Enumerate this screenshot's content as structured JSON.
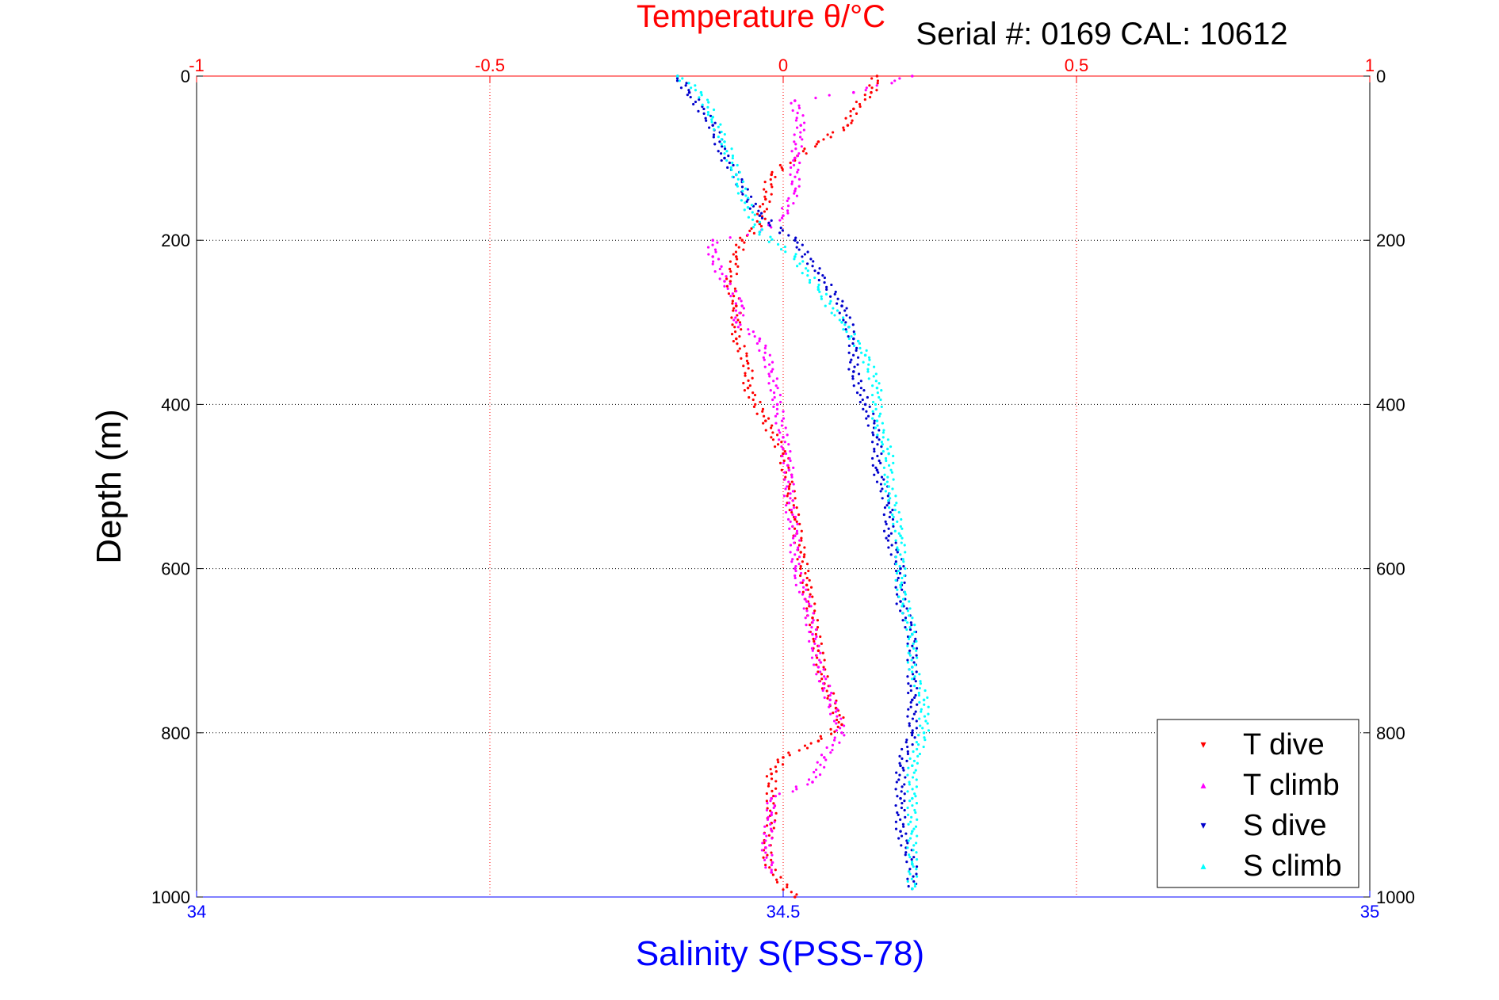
{
  "chart_data": {
    "type": "scatter",
    "top_title": "Temperature θ/°C",
    "serial_label": "Serial #: 0169 CAL: 10612",
    "ylabel": "Depth (m)",
    "xlabel_bottom": "Salinity S(PSS-78)",
    "temp_axis": {
      "range": [
        -1,
        1
      ],
      "ticks": [
        -1,
        -0.5,
        0,
        0.5,
        1
      ],
      "tick_labels": [
        "-1",
        "-0.5",
        "0",
        "0.5",
        "1"
      ]
    },
    "sal_axis": {
      "range": [
        34,
        35
      ],
      "ticks": [
        34,
        34.5,
        35
      ],
      "tick_labels": [
        "34",
        "34.5",
        "35"
      ]
    },
    "depth_axis": {
      "range": [
        0,
        1000
      ],
      "ticks": [
        0,
        200,
        400,
        600,
        800,
        1000
      ],
      "tick_labels": [
        "0",
        "200",
        "400",
        "600",
        "800",
        "1000"
      ],
      "reversed": true
    },
    "grid": true,
    "legend_position": "bottom-right",
    "colors": {
      "temp_axis": "#ff0000",
      "sal_axis": "#0000ff",
      "T dive": "#ff0000",
      "T climb": "#ff00ff",
      "S dive": "#0000cc",
      "S climb": "#00ffff"
    },
    "series": [
      {
        "name": "T dive",
        "axis": "temp",
        "points": [
          [
            0.16,
            0
          ],
          [
            0.15,
            20
          ],
          [
            0.12,
            40
          ],
          [
            0.11,
            60
          ],
          [
            0.06,
            80
          ],
          [
            0.02,
            100
          ],
          [
            -0.02,
            120
          ],
          [
            -0.03,
            150
          ],
          [
            -0.04,
            180
          ],
          [
            -0.07,
            200
          ],
          [
            -0.08,
            220
          ],
          [
            -0.09,
            250
          ],
          [
            -0.08,
            280
          ],
          [
            -0.08,
            320
          ],
          [
            -0.06,
            350
          ],
          [
            -0.06,
            380
          ],
          [
            -0.03,
            420
          ],
          [
            0.0,
            460
          ],
          [
            0.01,
            500
          ],
          [
            0.02,
            540
          ],
          [
            0.03,
            580
          ],
          [
            0.04,
            620
          ],
          [
            0.05,
            660
          ],
          [
            0.06,
            700
          ],
          [
            0.07,
            740
          ],
          [
            0.09,
            770
          ],
          [
            0.1,
            790
          ],
          [
            0.06,
            810
          ],
          [
            0.0,
            830
          ],
          [
            -0.02,
            850
          ],
          [
            -0.02,
            880
          ],
          [
            -0.02,
            910
          ],
          [
            -0.03,
            940
          ],
          [
            -0.02,
            970
          ],
          [
            0.02,
            1000
          ]
        ]
      },
      {
        "name": "T climb",
        "axis": "temp",
        "points": [
          [
            0.22,
            0
          ],
          [
            0.12,
            20
          ],
          [
            0.02,
            30
          ],
          [
            0.03,
            60
          ],
          [
            0.02,
            100
          ],
          [
            0.02,
            140
          ],
          [
            0.0,
            170
          ],
          [
            -0.04,
            190
          ],
          [
            -0.12,
            200
          ],
          [
            -0.12,
            220
          ],
          [
            -0.1,
            250
          ],
          [
            -0.07,
            280
          ],
          [
            -0.08,
            300
          ],
          [
            -0.04,
            320
          ],
          [
            -0.02,
            360
          ],
          [
            -0.01,
            400
          ],
          [
            0.0,
            440
          ],
          [
            0.01,
            480
          ],
          [
            0.01,
            520
          ],
          [
            0.02,
            560
          ],
          [
            0.02,
            600
          ],
          [
            0.04,
            640
          ],
          [
            0.05,
            680
          ],
          [
            0.06,
            720
          ],
          [
            0.08,
            760
          ],
          [
            0.1,
            800
          ],
          [
            0.07,
            830
          ],
          [
            0.05,
            860
          ],
          [
            -0.02,
            880
          ],
          [
            -0.02,
            900
          ],
          [
            -0.03,
            940
          ],
          [
            -0.02,
            970
          ]
        ]
      },
      {
        "name": "S dive",
        "axis": "sal",
        "points": [
          [
            34.41,
            0
          ],
          [
            34.42,
            20
          ],
          [
            34.44,
            60
          ],
          [
            34.45,
            100
          ],
          [
            34.46,
            120
          ],
          [
            34.47,
            150
          ],
          [
            34.48,
            170
          ],
          [
            34.51,
            200
          ],
          [
            34.53,
            240
          ],
          [
            34.55,
            280
          ],
          [
            34.56,
            320
          ],
          [
            34.56,
            360
          ],
          [
            34.57,
            400
          ],
          [
            34.58,
            440
          ],
          [
            34.58,
            480
          ],
          [
            34.59,
            520
          ],
          [
            34.59,
            560
          ],
          [
            34.6,
            600
          ],
          [
            34.6,
            640
          ],
          [
            34.61,
            680
          ],
          [
            34.61,
            720
          ],
          [
            34.61,
            760
          ],
          [
            34.61,
            800
          ],
          [
            34.6,
            840
          ],
          [
            34.6,
            880
          ],
          [
            34.6,
            920
          ],
          [
            34.61,
            960
          ],
          [
            34.61,
            990
          ]
        ]
      },
      {
        "name": "S climb",
        "axis": "sal",
        "points": [
          [
            34.41,
            0
          ],
          [
            34.43,
            20
          ],
          [
            34.44,
            50
          ],
          [
            34.45,
            80
          ],
          [
            34.46,
            120
          ],
          [
            34.47,
            160
          ],
          [
            34.48,
            190
          ],
          [
            34.51,
            220
          ],
          [
            34.53,
            260
          ],
          [
            34.55,
            300
          ],
          [
            34.57,
            340
          ],
          [
            34.58,
            380
          ],
          [
            34.58,
            420
          ],
          [
            34.59,
            460
          ],
          [
            34.59,
            500
          ],
          [
            34.6,
            560
          ],
          [
            34.6,
            620
          ],
          [
            34.61,
            680
          ],
          [
            34.61,
            720
          ],
          [
            34.62,
            760
          ],
          [
            34.62,
            800
          ],
          [
            34.61,
            840
          ],
          [
            34.61,
            880
          ],
          [
            34.61,
            920
          ],
          [
            34.61,
            960
          ],
          [
            34.61,
            990
          ]
        ]
      }
    ]
  }
}
